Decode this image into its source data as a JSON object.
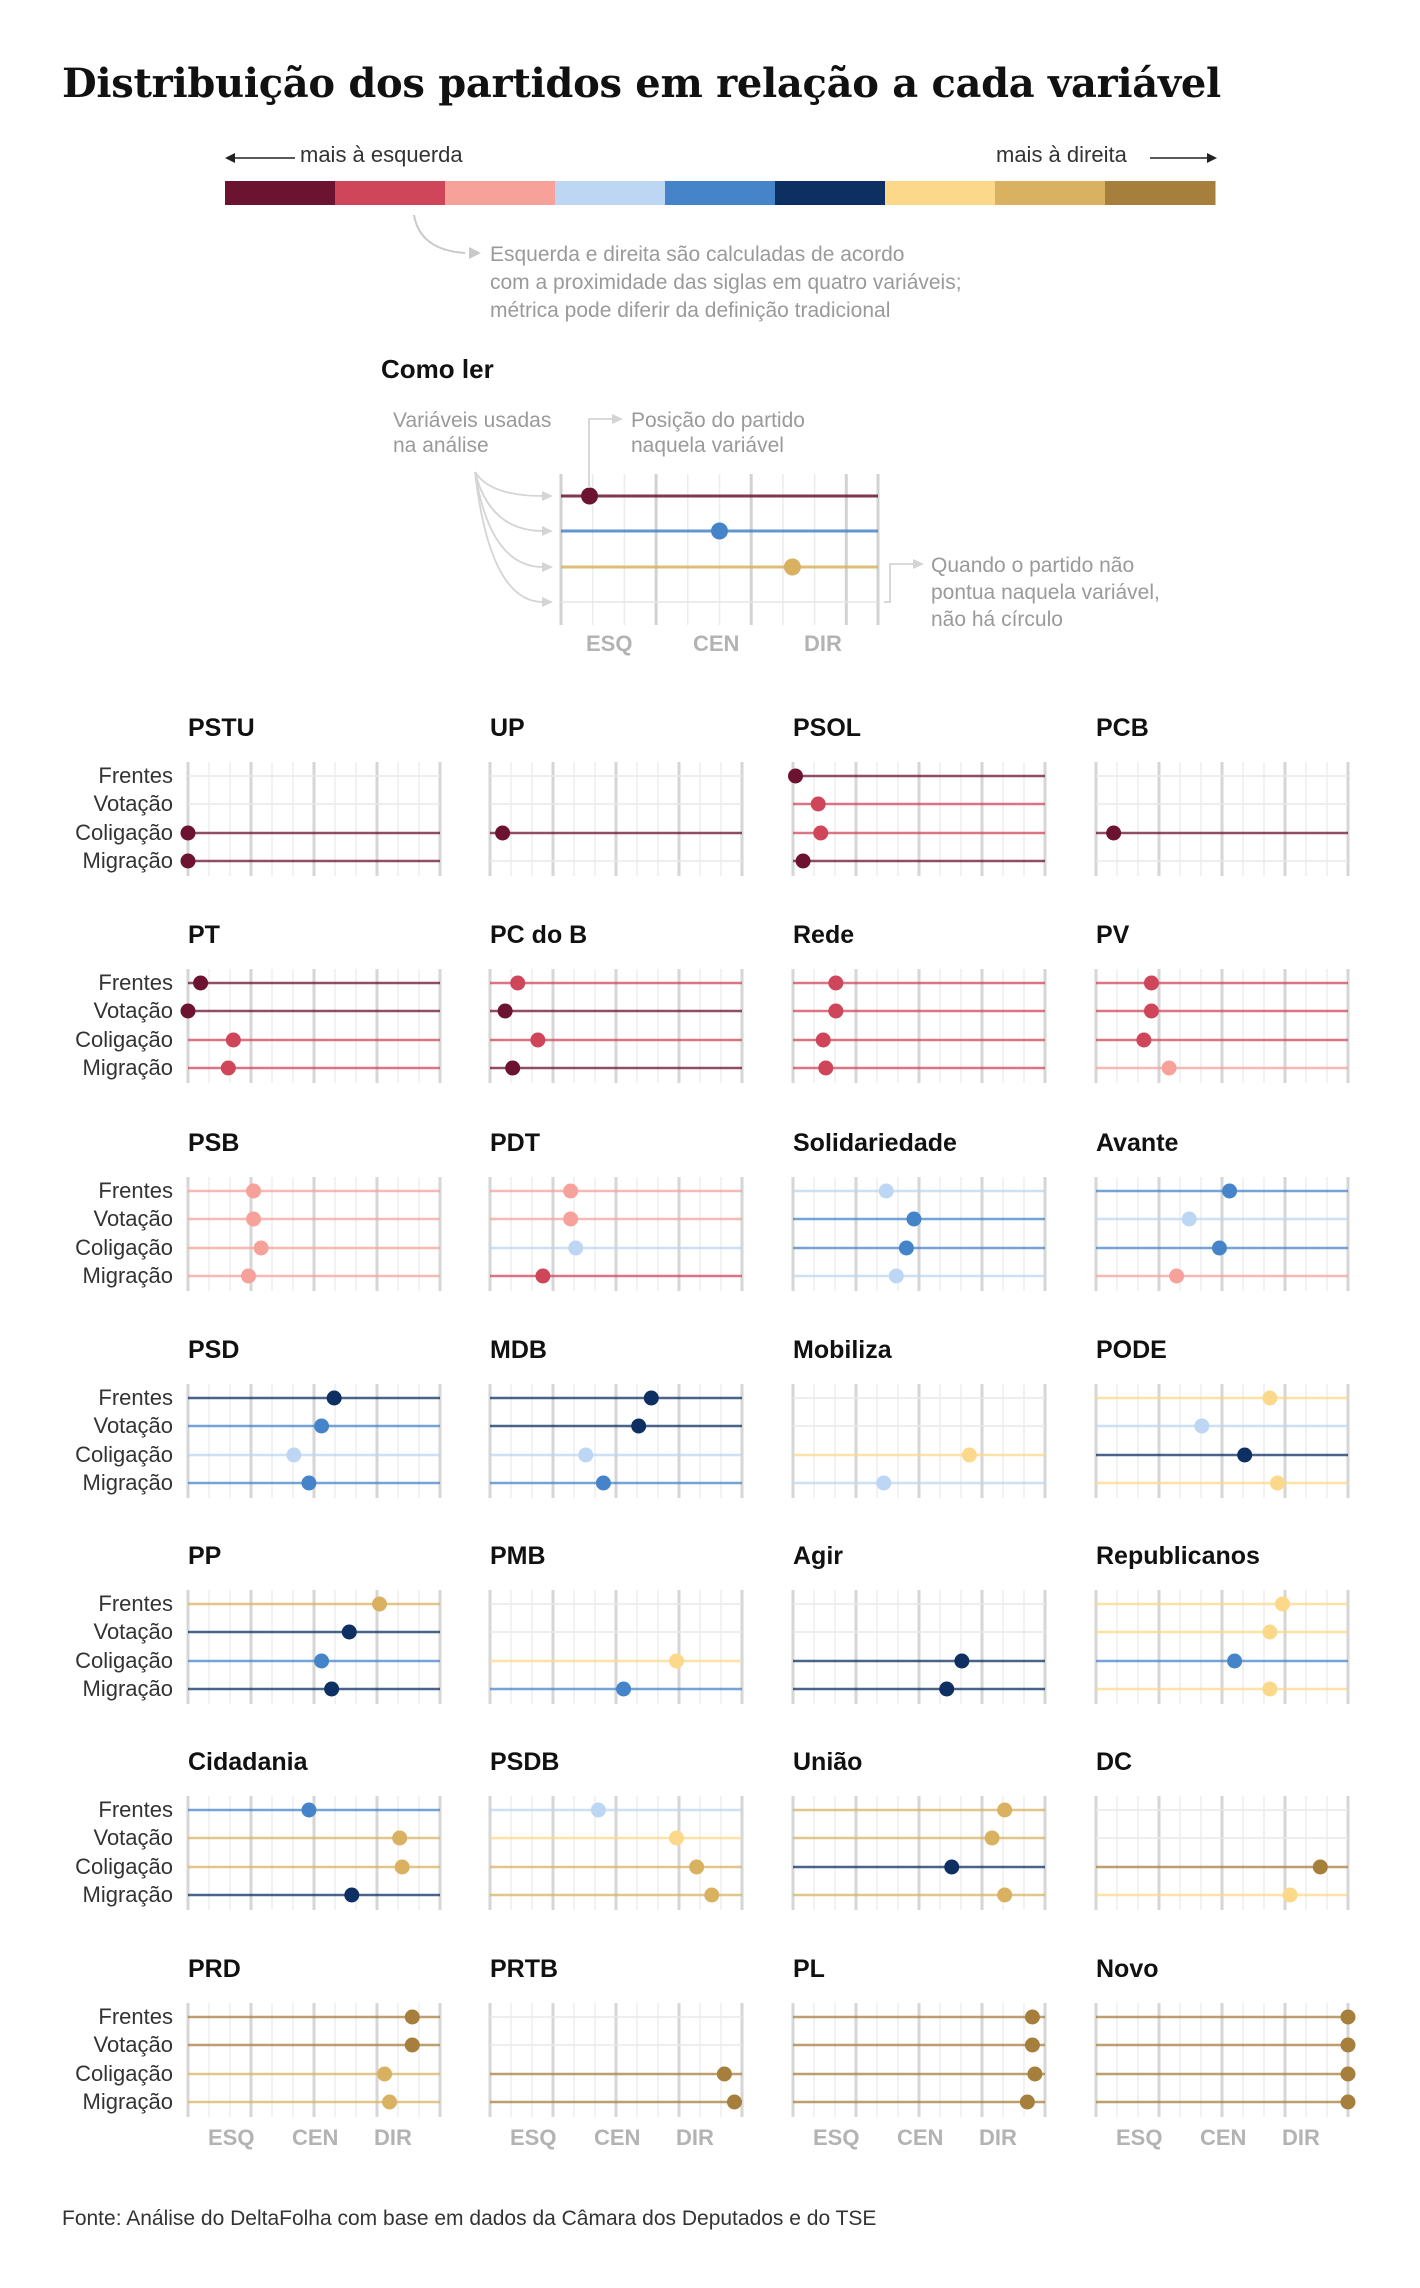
{
  "title": "Distribuição dos partidos em relação a cada variável",
  "scale": {
    "left_label": "mais à esquerda",
    "right_label": "mais à direita",
    "colors": [
      "#6b1331",
      "#cf4559",
      "#f6a199",
      "#bcd6f3",
      "#4584c9",
      "#0d2f61",
      "#fcd88a",
      "#d8b161",
      "#a57f3b"
    ],
    "note": [
      "Esquerda e direita são calculadas de acordo",
      "com a proximidade das siglas em quatro variáveis;",
      "métrica pode diferir da definição tradicional"
    ]
  },
  "how_to_read": {
    "title": "Como ler",
    "variables_note": [
      "Variáveis usadas",
      "na análise"
    ],
    "position_note": [
      "Posição do partido",
      "naquela variável"
    ],
    "missing_note": [
      "Quando o partido não",
      "pontua naquela variável,",
      "não há círculo"
    ],
    "axis_labels": [
      "ESQ",
      "CEN",
      "DIR"
    ],
    "example_rows": [
      {
        "value": 0.09,
        "color": "#6b1331"
      },
      {
        "value": 0.5,
        "color": "#4584c9"
      },
      {
        "value": 0.73,
        "color": "#d8b161"
      },
      {
        "value": null,
        "color": null
      }
    ]
  },
  "chart_data": {
    "type": "dot-plot small multiples",
    "variables": [
      "Frentes",
      "Votação",
      "Coligação",
      "Migração"
    ],
    "axis_labels": [
      "ESQ",
      "CEN",
      "DIR"
    ],
    "xlim": [
      0,
      1
    ],
    "parties": [
      {
        "name": "PSTU",
        "rows": [
          {
            "value": null
          },
          {
            "value": null
          },
          {
            "value": 0.0,
            "color": "#6b1331"
          },
          {
            "value": 0.0,
            "color": "#6b1331"
          }
        ]
      },
      {
        "name": "UP",
        "rows": [
          {
            "value": null
          },
          {
            "value": null
          },
          {
            "value": 0.05,
            "color": "#6b1331"
          },
          {
            "value": null
          }
        ]
      },
      {
        "name": "PSOL",
        "rows": [
          {
            "value": 0.01,
            "color": "#6b1331"
          },
          {
            "value": 0.1,
            "color": "#cf4559"
          },
          {
            "value": 0.11,
            "color": "#cf4559"
          },
          {
            "value": 0.04,
            "color": "#6b1331"
          }
        ]
      },
      {
        "name": "PCB",
        "rows": [
          {
            "value": null
          },
          {
            "value": null
          },
          {
            "value": 0.07,
            "color": "#6b1331"
          },
          {
            "value": null
          }
        ]
      },
      {
        "name": "PT",
        "rows": [
          {
            "value": 0.05,
            "color": "#6b1331"
          },
          {
            "value": 0.0,
            "color": "#6b1331"
          },
          {
            "value": 0.18,
            "color": "#cf4559"
          },
          {
            "value": 0.16,
            "color": "#cf4559"
          }
        ]
      },
      {
        "name": "PC do B",
        "rows": [
          {
            "value": 0.11,
            "color": "#cf4559"
          },
          {
            "value": 0.06,
            "color": "#6b1331"
          },
          {
            "value": 0.19,
            "color": "#cf4559"
          },
          {
            "value": 0.09,
            "color": "#6b1331"
          }
        ]
      },
      {
        "name": "Rede",
        "rows": [
          {
            "value": 0.17,
            "color": "#cf4559"
          },
          {
            "value": 0.17,
            "color": "#cf4559"
          },
          {
            "value": 0.12,
            "color": "#cf4559"
          },
          {
            "value": 0.13,
            "color": "#cf4559"
          }
        ]
      },
      {
        "name": "PV",
        "rows": [
          {
            "value": 0.22,
            "color": "#cf4559"
          },
          {
            "value": 0.22,
            "color": "#cf4559"
          },
          {
            "value": 0.19,
            "color": "#cf4559"
          },
          {
            "value": 0.29,
            "color": "#f6a199"
          }
        ]
      },
      {
        "name": "PSB",
        "rows": [
          {
            "value": 0.26,
            "color": "#f6a199"
          },
          {
            "value": 0.26,
            "color": "#f6a199"
          },
          {
            "value": 0.29,
            "color": "#f6a199"
          },
          {
            "value": 0.24,
            "color": "#f6a199"
          }
        ]
      },
      {
        "name": "PDT",
        "rows": [
          {
            "value": 0.32,
            "color": "#f6a199"
          },
          {
            "value": 0.32,
            "color": "#f6a199"
          },
          {
            "value": 0.34,
            "color": "#bcd6f3"
          },
          {
            "value": 0.21,
            "color": "#cf4559"
          }
        ]
      },
      {
        "name": "Solidariedade",
        "rows": [
          {
            "value": 0.37,
            "color": "#bcd6f3"
          },
          {
            "value": 0.48,
            "color": "#4584c9"
          },
          {
            "value": 0.45,
            "color": "#4584c9"
          },
          {
            "value": 0.41,
            "color": "#bcd6f3"
          }
        ]
      },
      {
        "name": "Avante",
        "rows": [
          {
            "value": 0.53,
            "color": "#4584c9"
          },
          {
            "value": 0.37,
            "color": "#bcd6f3"
          },
          {
            "value": 0.49,
            "color": "#4584c9"
          },
          {
            "value": 0.32,
            "color": "#f6a199"
          }
        ]
      },
      {
        "name": "PSD",
        "rows": [
          {
            "value": 0.58,
            "color": "#0d2f61"
          },
          {
            "value": 0.53,
            "color": "#4584c9"
          },
          {
            "value": 0.42,
            "color": "#bcd6f3"
          },
          {
            "value": 0.48,
            "color": "#4584c9"
          }
        ]
      },
      {
        "name": "MDB",
        "rows": [
          {
            "value": 0.64,
            "color": "#0d2f61"
          },
          {
            "value": 0.59,
            "color": "#0d2f61"
          },
          {
            "value": 0.38,
            "color": "#bcd6f3"
          },
          {
            "value": 0.45,
            "color": "#4584c9"
          }
        ]
      },
      {
        "name": "Mobiliza",
        "rows": [
          {
            "value": null
          },
          {
            "value": null
          },
          {
            "value": 0.7,
            "color": "#fcd88a"
          },
          {
            "value": 0.36,
            "color": "#bcd6f3"
          }
        ]
      },
      {
        "name": "PODE",
        "rows": [
          {
            "value": 0.69,
            "color": "#fcd88a"
          },
          {
            "value": 0.42,
            "color": "#bcd6f3"
          },
          {
            "value": 0.59,
            "color": "#0d2f61"
          },
          {
            "value": 0.72,
            "color": "#fcd88a"
          }
        ]
      },
      {
        "name": "PP",
        "rows": [
          {
            "value": 0.76,
            "color": "#d8b161"
          },
          {
            "value": 0.64,
            "color": "#0d2f61"
          },
          {
            "value": 0.53,
            "color": "#4584c9"
          },
          {
            "value": 0.57,
            "color": "#0d2f61"
          }
        ]
      },
      {
        "name": "PMB",
        "rows": [
          {
            "value": null
          },
          {
            "value": null
          },
          {
            "value": 0.74,
            "color": "#fcd88a"
          },
          {
            "value": 0.53,
            "color": "#4584c9"
          }
        ]
      },
      {
        "name": "Agir",
        "rows": [
          {
            "value": null
          },
          {
            "value": null
          },
          {
            "value": 0.67,
            "color": "#0d2f61"
          },
          {
            "value": 0.61,
            "color": "#0d2f61"
          }
        ]
      },
      {
        "name": "Republicanos",
        "rows": [
          {
            "value": 0.74,
            "color": "#fcd88a"
          },
          {
            "value": 0.69,
            "color": "#fcd88a"
          },
          {
            "value": 0.55,
            "color": "#4584c9"
          },
          {
            "value": 0.69,
            "color": "#fcd88a"
          }
        ]
      },
      {
        "name": "Cidadania",
        "rows": [
          {
            "value": 0.48,
            "color": "#4584c9"
          },
          {
            "value": 0.84,
            "color": "#d8b161"
          },
          {
            "value": 0.85,
            "color": "#d8b161"
          },
          {
            "value": 0.65,
            "color": "#0d2f61"
          }
        ]
      },
      {
        "name": "PSDB",
        "rows": [
          {
            "value": 0.43,
            "color": "#bcd6f3"
          },
          {
            "value": 0.74,
            "color": "#fcd88a"
          },
          {
            "value": 0.82,
            "color": "#d8b161"
          },
          {
            "value": 0.88,
            "color": "#d8b161"
          }
        ]
      },
      {
        "name": "União",
        "rows": [
          {
            "value": 0.84,
            "color": "#d8b161"
          },
          {
            "value": 0.79,
            "color": "#d8b161"
          },
          {
            "value": 0.63,
            "color": "#0d2f61"
          },
          {
            "value": 0.84,
            "color": "#d8b161"
          }
        ]
      },
      {
        "name": "DC",
        "rows": [
          {
            "value": null
          },
          {
            "value": null
          },
          {
            "value": 0.89,
            "color": "#a57f3b"
          },
          {
            "value": 0.77,
            "color": "#fcd88a"
          }
        ]
      },
      {
        "name": "PRD",
        "rows": [
          {
            "value": 0.89,
            "color": "#a57f3b"
          },
          {
            "value": 0.89,
            "color": "#a57f3b"
          },
          {
            "value": 0.78,
            "color": "#d8b161"
          },
          {
            "value": 0.8,
            "color": "#d8b161"
          }
        ]
      },
      {
        "name": "PRTB",
        "rows": [
          {
            "value": null
          },
          {
            "value": null
          },
          {
            "value": 0.93,
            "color": "#a57f3b"
          },
          {
            "value": 0.97,
            "color": "#a57f3b"
          }
        ]
      },
      {
        "name": "PL",
        "rows": [
          {
            "value": 0.95,
            "color": "#a57f3b"
          },
          {
            "value": 0.95,
            "color": "#a57f3b"
          },
          {
            "value": 0.96,
            "color": "#a57f3b"
          },
          {
            "value": 0.93,
            "color": "#a57f3b"
          }
        ]
      },
      {
        "name": "Novo",
        "rows": [
          {
            "value": 1.0,
            "color": "#a57f3b"
          },
          {
            "value": 1.0,
            "color": "#a57f3b"
          },
          {
            "value": 1.0,
            "color": "#a57f3b"
          },
          {
            "value": 1.0,
            "color": "#a57f3b"
          }
        ]
      }
    ]
  },
  "source": "Fonte: Análise do DeltaFolha com base em dados da Câmara dos Deputados e do TSE"
}
